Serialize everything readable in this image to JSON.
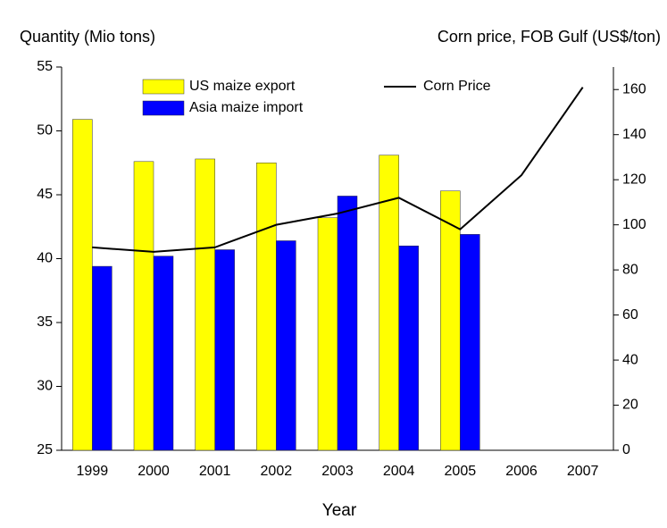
{
  "chart_data": {
    "type": "bar",
    "y_label": "Quantity (Mio tons)",
    "y2_label": "Corn price, FOB Gulf (US$/ton)",
    "x_label": "Year",
    "categories": [
      "1999",
      "2000",
      "2001",
      "2002",
      "2003",
      "2004",
      "2005",
      "2006",
      "2007"
    ],
    "series": [
      {
        "name": "US maize export",
        "color": "#ffff00",
        "type": "bar",
        "values": [
          50.9,
          47.6,
          47.8,
          47.5,
          43.2,
          48.1,
          45.3,
          null,
          null
        ]
      },
      {
        "name": "Asia maize import",
        "color": "#0000ff",
        "type": "bar",
        "values": [
          39.4,
          40.2,
          40.7,
          41.4,
          44.9,
          41.0,
          41.9,
          null,
          null
        ]
      },
      {
        "name": "Corn Price",
        "color": "#000000",
        "type": "line",
        "axis": "y2",
        "values": [
          90,
          88,
          90,
          100,
          105,
          112,
          98,
          122,
          161
        ]
      }
    ],
    "ylim": [
      25,
      55
    ],
    "yticks": [
      25,
      30,
      35,
      40,
      45,
      50,
      55
    ],
    "y2lim": [
      0,
      170
    ],
    "y2ticks": [
      0,
      20,
      40,
      60,
      80,
      100,
      120,
      140,
      160
    ],
    "grid": false
  }
}
